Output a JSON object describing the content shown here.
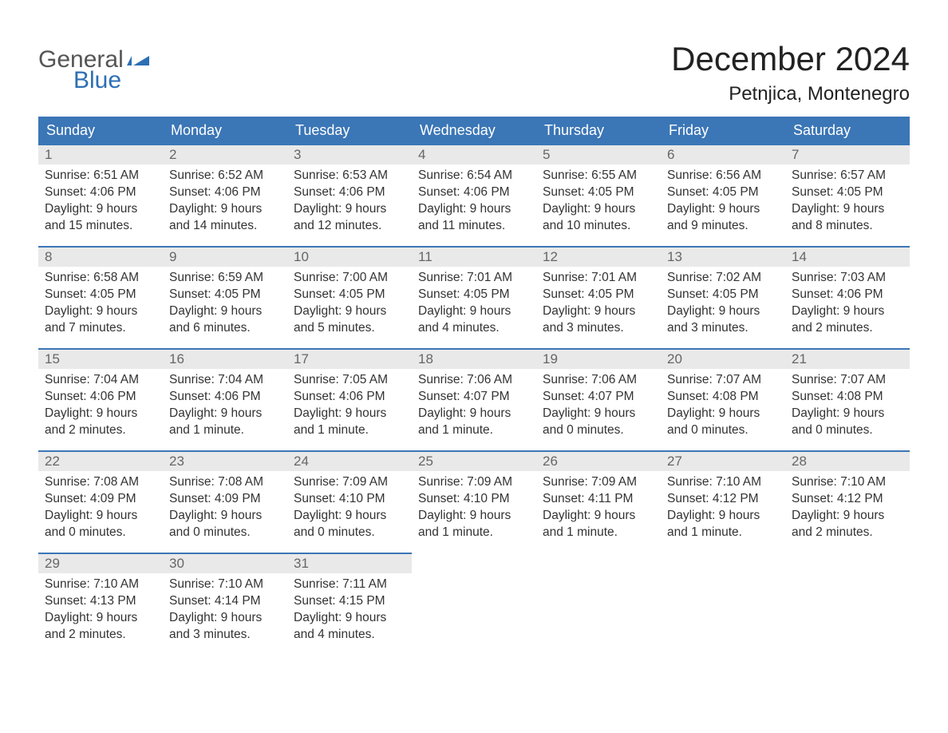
{
  "logo": {
    "general": "General",
    "blue": "Blue"
  },
  "title": "December 2024",
  "location": "Petnjica, Montenegro",
  "colors": {
    "header_bg": "#3b76b6",
    "header_text": "#ffffff",
    "daynum_bg": "#e9e9e9",
    "daynum_text": "#666666",
    "body_bg": "#ffffff",
    "body_text": "#333333",
    "logo_blue": "#2d6fb4"
  },
  "weekdays": [
    "Sunday",
    "Monday",
    "Tuesday",
    "Wednesday",
    "Thursday",
    "Friday",
    "Saturday"
  ],
  "weeks": [
    [
      {
        "n": "1",
        "sunrise": "Sunrise: 6:51 AM",
        "sunset": "Sunset: 4:06 PM",
        "daylight": "Daylight: 9 hours and 15 minutes."
      },
      {
        "n": "2",
        "sunrise": "Sunrise: 6:52 AM",
        "sunset": "Sunset: 4:06 PM",
        "daylight": "Daylight: 9 hours and 14 minutes."
      },
      {
        "n": "3",
        "sunrise": "Sunrise: 6:53 AM",
        "sunset": "Sunset: 4:06 PM",
        "daylight": "Daylight: 9 hours and 12 minutes."
      },
      {
        "n": "4",
        "sunrise": "Sunrise: 6:54 AM",
        "sunset": "Sunset: 4:06 PM",
        "daylight": "Daylight: 9 hours and 11 minutes."
      },
      {
        "n": "5",
        "sunrise": "Sunrise: 6:55 AM",
        "sunset": "Sunset: 4:05 PM",
        "daylight": "Daylight: 9 hours and 10 minutes."
      },
      {
        "n": "6",
        "sunrise": "Sunrise: 6:56 AM",
        "sunset": "Sunset: 4:05 PM",
        "daylight": "Daylight: 9 hours and 9 minutes."
      },
      {
        "n": "7",
        "sunrise": "Sunrise: 6:57 AM",
        "sunset": "Sunset: 4:05 PM",
        "daylight": "Daylight: 9 hours and 8 minutes."
      }
    ],
    [
      {
        "n": "8",
        "sunrise": "Sunrise: 6:58 AM",
        "sunset": "Sunset: 4:05 PM",
        "daylight": "Daylight: 9 hours and 7 minutes."
      },
      {
        "n": "9",
        "sunrise": "Sunrise: 6:59 AM",
        "sunset": "Sunset: 4:05 PM",
        "daylight": "Daylight: 9 hours and 6 minutes."
      },
      {
        "n": "10",
        "sunrise": "Sunrise: 7:00 AM",
        "sunset": "Sunset: 4:05 PM",
        "daylight": "Daylight: 9 hours and 5 minutes."
      },
      {
        "n": "11",
        "sunrise": "Sunrise: 7:01 AM",
        "sunset": "Sunset: 4:05 PM",
        "daylight": "Daylight: 9 hours and 4 minutes."
      },
      {
        "n": "12",
        "sunrise": "Sunrise: 7:01 AM",
        "sunset": "Sunset: 4:05 PM",
        "daylight": "Daylight: 9 hours and 3 minutes."
      },
      {
        "n": "13",
        "sunrise": "Sunrise: 7:02 AM",
        "sunset": "Sunset: 4:05 PM",
        "daylight": "Daylight: 9 hours and 3 minutes."
      },
      {
        "n": "14",
        "sunrise": "Sunrise: 7:03 AM",
        "sunset": "Sunset: 4:06 PM",
        "daylight": "Daylight: 9 hours and 2 minutes."
      }
    ],
    [
      {
        "n": "15",
        "sunrise": "Sunrise: 7:04 AM",
        "sunset": "Sunset: 4:06 PM",
        "daylight": "Daylight: 9 hours and 2 minutes."
      },
      {
        "n": "16",
        "sunrise": "Sunrise: 7:04 AM",
        "sunset": "Sunset: 4:06 PM",
        "daylight": "Daylight: 9 hours and 1 minute."
      },
      {
        "n": "17",
        "sunrise": "Sunrise: 7:05 AM",
        "sunset": "Sunset: 4:06 PM",
        "daylight": "Daylight: 9 hours and 1 minute."
      },
      {
        "n": "18",
        "sunrise": "Sunrise: 7:06 AM",
        "sunset": "Sunset: 4:07 PM",
        "daylight": "Daylight: 9 hours and 1 minute."
      },
      {
        "n": "19",
        "sunrise": "Sunrise: 7:06 AM",
        "sunset": "Sunset: 4:07 PM",
        "daylight": "Daylight: 9 hours and 0 minutes."
      },
      {
        "n": "20",
        "sunrise": "Sunrise: 7:07 AM",
        "sunset": "Sunset: 4:08 PM",
        "daylight": "Daylight: 9 hours and 0 minutes."
      },
      {
        "n": "21",
        "sunrise": "Sunrise: 7:07 AM",
        "sunset": "Sunset: 4:08 PM",
        "daylight": "Daylight: 9 hours and 0 minutes."
      }
    ],
    [
      {
        "n": "22",
        "sunrise": "Sunrise: 7:08 AM",
        "sunset": "Sunset: 4:09 PM",
        "daylight": "Daylight: 9 hours and 0 minutes."
      },
      {
        "n": "23",
        "sunrise": "Sunrise: 7:08 AM",
        "sunset": "Sunset: 4:09 PM",
        "daylight": "Daylight: 9 hours and 0 minutes."
      },
      {
        "n": "24",
        "sunrise": "Sunrise: 7:09 AM",
        "sunset": "Sunset: 4:10 PM",
        "daylight": "Daylight: 9 hours and 0 minutes."
      },
      {
        "n": "25",
        "sunrise": "Sunrise: 7:09 AM",
        "sunset": "Sunset: 4:10 PM",
        "daylight": "Daylight: 9 hours and 1 minute."
      },
      {
        "n": "26",
        "sunrise": "Sunrise: 7:09 AM",
        "sunset": "Sunset: 4:11 PM",
        "daylight": "Daylight: 9 hours and 1 minute."
      },
      {
        "n": "27",
        "sunrise": "Sunrise: 7:10 AM",
        "sunset": "Sunset: 4:12 PM",
        "daylight": "Daylight: 9 hours and 1 minute."
      },
      {
        "n": "28",
        "sunrise": "Sunrise: 7:10 AM",
        "sunset": "Sunset: 4:12 PM",
        "daylight": "Daylight: 9 hours and 2 minutes."
      }
    ],
    [
      {
        "n": "29",
        "sunrise": "Sunrise: 7:10 AM",
        "sunset": "Sunset: 4:13 PM",
        "daylight": "Daylight: 9 hours and 2 minutes."
      },
      {
        "n": "30",
        "sunrise": "Sunrise: 7:10 AM",
        "sunset": "Sunset: 4:14 PM",
        "daylight": "Daylight: 9 hours and 3 minutes."
      },
      {
        "n": "31",
        "sunrise": "Sunrise: 7:11 AM",
        "sunset": "Sunset: 4:15 PM",
        "daylight": "Daylight: 9 hours and 4 minutes."
      },
      null,
      null,
      null,
      null
    ]
  ]
}
